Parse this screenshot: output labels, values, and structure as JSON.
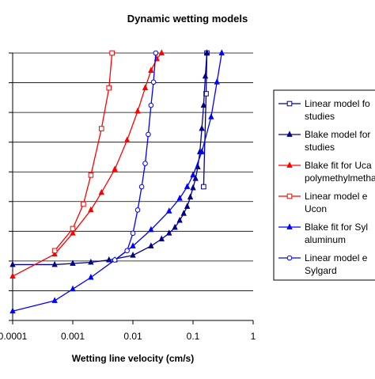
{
  "chart_data": {
    "type": "scatter",
    "title": "Dynamic wetting models",
    "xlabel": "Wetting line velocity (cm/s)",
    "ylabel": "",
    "x_scale": "log",
    "xlim": [
      0.0001,
      1
    ],
    "x_ticks": [
      "0.0001",
      "0.001",
      "0.01",
      "0.1",
      "1"
    ],
    "y_ticks_visible": false,
    "grid_y": true,
    "legend_position": "right",
    "series": [
      {
        "name": "Linear model fo studies",
        "color": "#00008b",
        "marker": "square-open",
        "points": [
          [
            0.15,
            1.15
          ],
          [
            0.165,
            1.95
          ],
          [
            0.17,
            2.3
          ]
        ]
      },
      {
        "name": "Blake model for studies",
        "color": "#00008b",
        "marker": "triangle-filled",
        "points": [
          [
            0.0001,
            0.48
          ],
          [
            0.0005,
            0.48
          ],
          [
            0.001,
            0.49
          ],
          [
            0.002,
            0.5
          ],
          [
            0.004,
            0.52
          ],
          [
            0.01,
            0.56
          ],
          [
            0.02,
            0.64
          ],
          [
            0.03,
            0.7
          ],
          [
            0.04,
            0.75
          ],
          [
            0.05,
            0.8
          ],
          [
            0.06,
            0.86
          ],
          [
            0.07,
            0.92
          ],
          [
            0.08,
            0.98
          ],
          [
            0.09,
            1.06
          ],
          [
            0.1,
            1.14
          ],
          [
            0.11,
            1.22
          ],
          [
            0.12,
            1.32
          ],
          [
            0.13,
            1.45
          ],
          [
            0.14,
            1.65
          ],
          [
            0.15,
            1.85
          ],
          [
            0.16,
            2.1
          ],
          [
            0.17,
            2.3
          ]
        ]
      },
      {
        "name": "Blake fit for Uca polymethylmetha",
        "color": "#ff0000",
        "marker": "triangle-filled",
        "points": [
          [
            0.0001,
            0.38
          ],
          [
            0.0005,
            0.57
          ],
          [
            0.001,
            0.75
          ],
          [
            0.002,
            0.95
          ],
          [
            0.003,
            1.1
          ],
          [
            0.005,
            1.3
          ],
          [
            0.008,
            1.55
          ],
          [
            0.012,
            1.8
          ],
          [
            0.016,
            2.0
          ],
          [
            0.02,
            2.15
          ],
          [
            0.025,
            2.25
          ],
          [
            0.03,
            2.3
          ]
        ]
      },
      {
        "name": "Linear model e Ucon",
        "color": "#ff0000",
        "marker": "square-open",
        "points": [
          [
            0.0005,
            0.6
          ],
          [
            0.001,
            0.79
          ],
          [
            0.0015,
            1.0
          ],
          [
            0.002,
            1.25
          ],
          [
            0.003,
            1.65
          ],
          [
            0.004,
            2.0
          ],
          [
            0.0045,
            2.3
          ]
        ]
      },
      {
        "name": "Blake fit for Syl aluminum",
        "color": "#0000ff",
        "marker": "triangle-filled",
        "points": [
          [
            0.0001,
            0.08
          ],
          [
            0.0005,
            0.17
          ],
          [
            0.001,
            0.27
          ],
          [
            0.002,
            0.37
          ],
          [
            0.005,
            0.52
          ],
          [
            0.01,
            0.64
          ],
          [
            0.02,
            0.78
          ],
          [
            0.04,
            0.94
          ],
          [
            0.06,
            1.05
          ],
          [
            0.08,
            1.15
          ],
          [
            0.1,
            1.25
          ],
          [
            0.14,
            1.45
          ],
          [
            0.2,
            1.75
          ],
          [
            0.25,
            2.05
          ],
          [
            0.3,
            2.3
          ]
        ]
      },
      {
        "name": "Linear model e Sylgard",
        "color": "#0000ff",
        "marker": "circle-open",
        "points": [
          [
            0.005,
            0.52
          ],
          [
            0.008,
            0.6
          ],
          [
            0.01,
            0.75
          ],
          [
            0.012,
            0.95
          ],
          [
            0.014,
            1.15
          ],
          [
            0.016,
            1.35
          ],
          [
            0.018,
            1.6
          ],
          [
            0.02,
            1.85
          ],
          [
            0.022,
            2.05
          ],
          [
            0.024,
            2.3
          ]
        ]
      }
    ]
  }
}
